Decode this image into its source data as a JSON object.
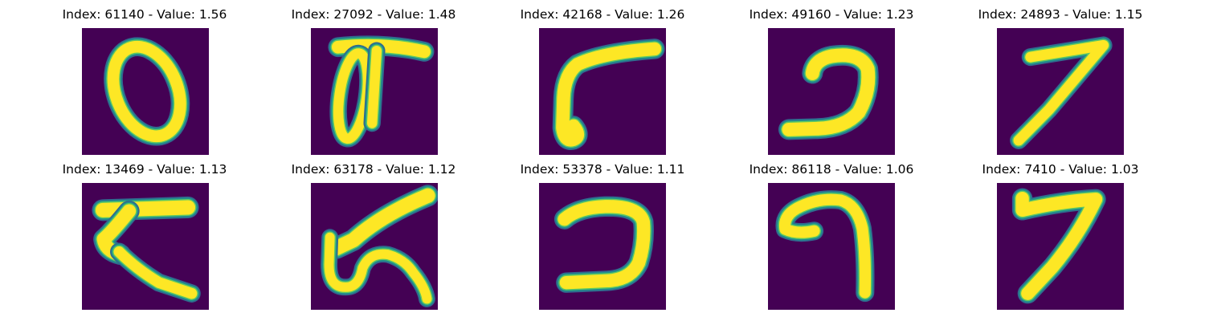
{
  "colors": {
    "background": "#440154",
    "dark_teal": "#31688e",
    "teal": "#21918c",
    "green": "#5ec962",
    "yellow": "#fde725"
  },
  "panels": [
    {
      "title": "Index: 61140 - Value: 1.56",
      "digit_shape": "zero"
    },
    {
      "title": "Index: 27092 - Value: 1.48",
      "digit_shape": "zero-with-bar"
    },
    {
      "title": "Index: 42168 - Value: 1.26",
      "digit_shape": "bar-with-hook"
    },
    {
      "title": "Index: 49160 - Value: 1.23",
      "digit_shape": "reversed-c"
    },
    {
      "title": "Index: 24893 - Value: 1.15",
      "digit_shape": "seven"
    },
    {
      "title": "Index: 13469 - Value: 1.13",
      "digit_shape": "k-shape"
    },
    {
      "title": "Index: 63178 - Value: 1.12",
      "digit_shape": "six-like"
    },
    {
      "title": "Index: 53378 - Value: 1.11",
      "digit_shape": "reversed-c"
    },
    {
      "title": "Index: 86118 - Value: 1.06",
      "digit_shape": "hook"
    },
    {
      "title": "Index: 7410 - Value: 1.03",
      "digit_shape": "seven"
    }
  ]
}
